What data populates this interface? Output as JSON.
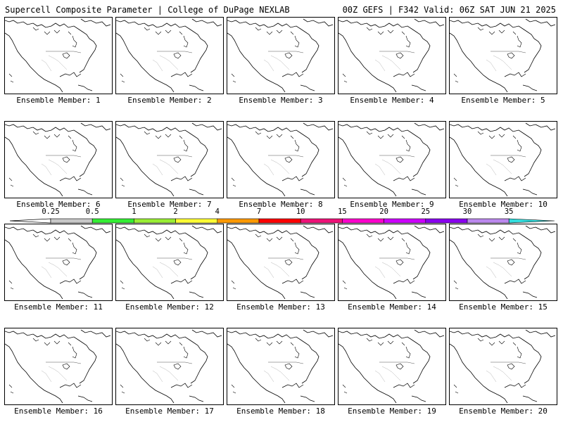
{
  "header": {
    "left_title": "Supercell Composite Parameter | College of DuPage NEXLAB",
    "right_title": "00Z GEFS | F342 Valid: 06Z SAT JUN 21 2025"
  },
  "colorbar": {
    "ticks": [
      "0.25",
      "0.5",
      "1",
      "2",
      "4",
      "7",
      "10",
      "15",
      "20",
      "25",
      "30",
      "35"
    ],
    "colors": [
      "#c8c8c8",
      "#33ee33",
      "#99ee33",
      "#ffff33",
      "#ff9900",
      "#ff0000",
      "#ee1177",
      "#ff00cc",
      "#cc00ff",
      "#8800ee",
      "#bb88ee",
      "#33dddd"
    ]
  },
  "panels": [
    {
      "label": "Ensemble Member: 1"
    },
    {
      "label": "Ensemble Member: 2"
    },
    {
      "label": "Ensemble Member: 3"
    },
    {
      "label": "Ensemble Member: 4"
    },
    {
      "label": "Ensemble Member: 5"
    },
    {
      "label": "Ensemble Member: 6"
    },
    {
      "label": "Ensemble Member: 7"
    },
    {
      "label": "Ensemble Member: 8"
    },
    {
      "label": "Ensemble Member: 9"
    },
    {
      "label": "Ensemble Member: 10"
    },
    {
      "label": "Ensemble Member: 11"
    },
    {
      "label": "Ensemble Member: 12"
    },
    {
      "label": "Ensemble Member: 13"
    },
    {
      "label": "Ensemble Member: 14"
    },
    {
      "label": "Ensemble Member: 15"
    },
    {
      "label": "Ensemble Member: 16"
    },
    {
      "label": "Ensemble Member: 17"
    },
    {
      "label": "Ensemble Member: 18"
    },
    {
      "label": "Ensemble Member: 19"
    },
    {
      "label": "Ensemble Member: 20"
    }
  ]
}
